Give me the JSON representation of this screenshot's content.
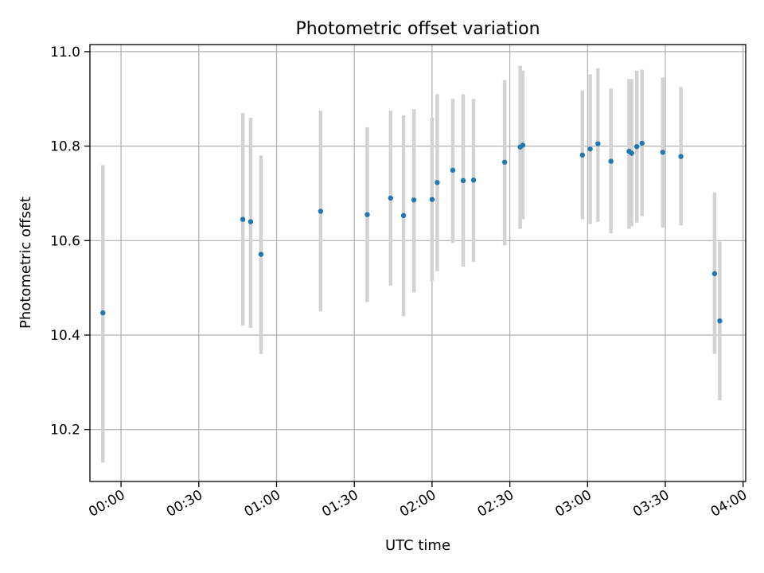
{
  "chart_data": {
    "type": "scatter",
    "title": "Photometric offset variation",
    "xlabel": "UTC time",
    "ylabel": "Photometric offset",
    "x_unit": "time (HH:MM)",
    "xlim": [
      "23:48",
      "04:01"
    ],
    "ylim": [
      10.09,
      11.015
    ],
    "grid": true,
    "marker_color": "#1f77b4",
    "errorbar_color": "#d3d3d3",
    "x_ticks": [
      "00:00",
      "00:30",
      "01:00",
      "01:30",
      "02:00",
      "02:30",
      "03:00",
      "03:30",
      "04:00"
    ],
    "y_ticks": [
      "10.2",
      "10.4",
      "10.6",
      "10.8",
      "11.0"
    ],
    "points": [
      {
        "x": "23:53",
        "y": 10.447,
        "ylow": 10.13,
        "yhigh": 10.76
      },
      {
        "x": "00:47",
        "y": 10.645,
        "ylow": 10.42,
        "yhigh": 10.87
      },
      {
        "x": "00:50",
        "y": 10.64,
        "ylow": 10.415,
        "yhigh": 10.86
      },
      {
        "x": "00:54",
        "y": 10.571,
        "ylow": 10.36,
        "yhigh": 10.78
      },
      {
        "x": "01:17",
        "y": 10.662,
        "ylow": 10.45,
        "yhigh": 10.875
      },
      {
        "x": "01:35",
        "y": 10.655,
        "ylow": 10.47,
        "yhigh": 10.84
      },
      {
        "x": "01:44",
        "y": 10.69,
        "ylow": 10.505,
        "yhigh": 10.875
      },
      {
        "x": "01:49",
        "y": 10.653,
        "ylow": 10.44,
        "yhigh": 10.865
      },
      {
        "x": "01:53",
        "y": 10.686,
        "ylow": 10.49,
        "yhigh": 10.878
      },
      {
        "x": "02:00",
        "y": 10.687,
        "ylow": 10.515,
        "yhigh": 10.86
      },
      {
        "x": "02:02",
        "y": 10.723,
        "ylow": 10.535,
        "yhigh": 10.91
      },
      {
        "x": "02:08",
        "y": 10.749,
        "ylow": 10.595,
        "yhigh": 10.9
      },
      {
        "x": "02:12",
        "y": 10.727,
        "ylow": 10.545,
        "yhigh": 10.91
      },
      {
        "x": "02:16",
        "y": 10.728,
        "ylow": 10.555,
        "yhigh": 10.9
      },
      {
        "x": "02:28",
        "y": 10.766,
        "ylow": 10.59,
        "yhigh": 10.94
      },
      {
        "x": "02:34",
        "y": 10.798,
        "ylow": 10.625,
        "yhigh": 10.97
      },
      {
        "x": "02:35",
        "y": 10.802,
        "ylow": 10.645,
        "yhigh": 10.96
      },
      {
        "x": "02:58",
        "y": 10.781,
        "ylow": 10.645,
        "yhigh": 10.918
      },
      {
        "x": "03:01",
        "y": 10.794,
        "ylow": 10.635,
        "yhigh": 10.952
      },
      {
        "x": "03:04",
        "y": 10.805,
        "ylow": 10.64,
        "yhigh": 10.965
      },
      {
        "x": "03:09",
        "y": 10.768,
        "ylow": 10.615,
        "yhigh": 10.922
      },
      {
        "x": "03:16",
        "y": 10.789,
        "ylow": 10.625,
        "yhigh": 10.942
      },
      {
        "x": "03:17",
        "y": 10.785,
        "ylow": 10.63,
        "yhigh": 10.942
      },
      {
        "x": "03:19",
        "y": 10.799,
        "ylow": 10.638,
        "yhigh": 10.96
      },
      {
        "x": "03:21",
        "y": 10.806,
        "ylow": 10.652,
        "yhigh": 10.962
      },
      {
        "x": "03:29",
        "y": 10.787,
        "ylow": 10.628,
        "yhigh": 10.945
      },
      {
        "x": "03:36",
        "y": 10.778,
        "ylow": 10.632,
        "yhigh": 10.925
      },
      {
        "x": "03:49",
        "y": 10.53,
        "ylow": 10.36,
        "yhigh": 10.702
      },
      {
        "x": "03:51",
        "y": 10.43,
        "ylow": 10.262,
        "yhigh": 10.598
      }
    ]
  }
}
